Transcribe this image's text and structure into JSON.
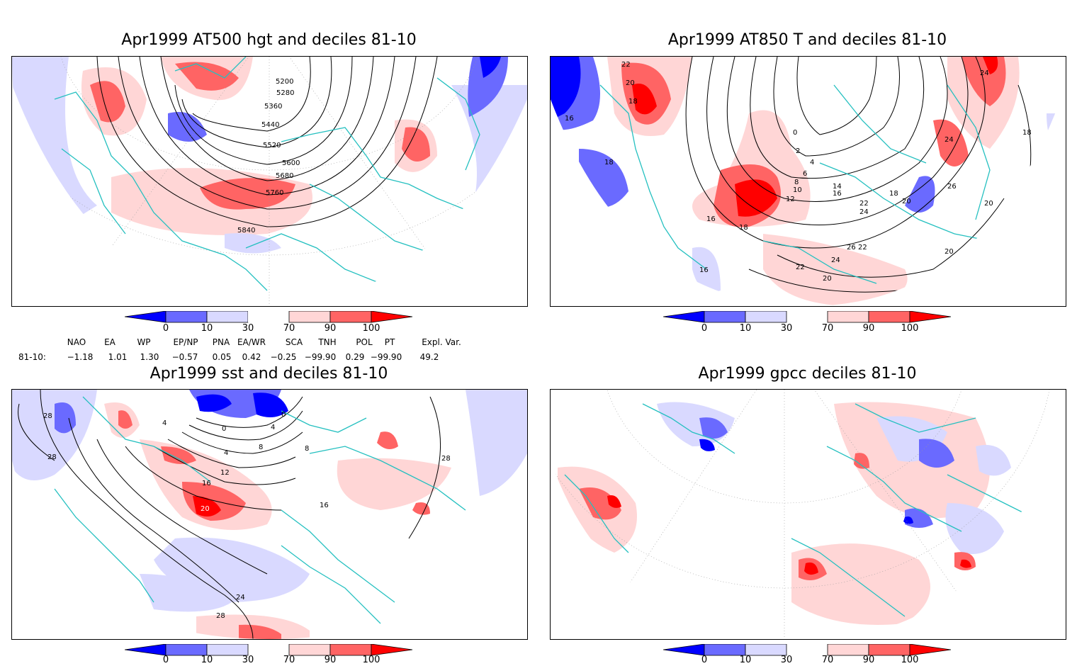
{
  "panels": [
    {
      "id": "p1",
      "title": "Apr1999 AT500 hgt and deciles 81-10",
      "contour_labels": [
        "5200",
        "5280",
        "5360",
        "5440",
        "5520",
        "5600",
        "5680",
        "5760",
        "5840"
      ]
    },
    {
      "id": "p2",
      "title": "Apr1999 AT850 T and deciles 81-10",
      "contour_labels": [
        "22",
        "20",
        "18",
        "16",
        "18",
        "0",
        "2",
        "4",
        "6",
        "8",
        "10",
        "12",
        "14",
        "16",
        "18",
        "20",
        "22",
        "24",
        "26",
        "24",
        "20",
        "16",
        "18",
        "20",
        "22",
        "24",
        "26",
        "18",
        "20",
        "22",
        "24",
        "16"
      ]
    },
    {
      "id": "p3",
      "title": "Apr1999 sst and deciles 81-10",
      "contour_labels": [
        "28",
        "28",
        "4",
        "0",
        "0",
        "4",
        "8",
        "4",
        "12",
        "16",
        "20",
        "16",
        "24",
        "28",
        "28",
        "8"
      ]
    },
    {
      "id": "p4",
      "title": "Apr1999 gpcc deciles 81-10",
      "contour_labels": []
    }
  ],
  "colorbar": {
    "ticks": [
      "0",
      "10",
      "30",
      "70",
      "90",
      "100"
    ],
    "colors": [
      "#0000ff",
      "#6a6aff",
      "#d9d9ff",
      "#ffffff",
      "#ffd6d6",
      "#ff6464",
      "#ff0000"
    ]
  },
  "indices": {
    "headers": [
      "NAO",
      "EA",
      "WP",
      "EP/NP",
      "PNA",
      "EA/WR",
      "SCA",
      "TNH",
      "POL",
      "PT",
      "Expl. Var."
    ],
    "row_label": "81-10:",
    "values": [
      "−1.18",
      "1.01",
      "1.30",
      "−0.57",
      "0.05",
      "0.42",
      "−0.25",
      "−99.90",
      "0.29",
      "−99.90",
      "49.2"
    ]
  }
}
